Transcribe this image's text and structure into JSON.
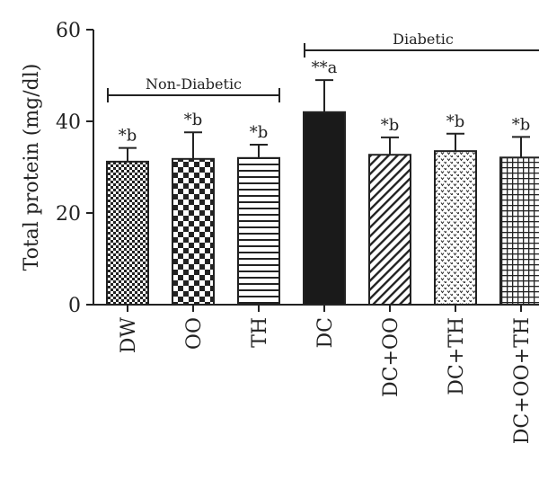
{
  "chart_data": {
    "type": "bar",
    "ylabel": "Total protein (mg/dl)",
    "ylim": [
      0,
      60
    ],
    "yticks": [
      0,
      20,
      40,
      60
    ],
    "categories": [
      "DW",
      "OO",
      "TH",
      "DC",
      "DC+OO",
      "DC+TH",
      "DC+OO+TH"
    ],
    "values": [
      31.2,
      31.8,
      32.0,
      42.0,
      32.7,
      33.5,
      32.1
    ],
    "errors": [
      3.0,
      5.8,
      2.9,
      7.0,
      3.8,
      3.8,
      4.5
    ],
    "annotations": [
      "*b",
      "*b",
      "*b",
      "**a",
      "*b",
      "*b",
      "*b"
    ],
    "patterns": [
      "fine-checker",
      "checkerboard",
      "horizontal-lines",
      "solid",
      "diagonal-lines",
      "dots",
      "grid"
    ],
    "groups": [
      {
        "label": "Non-Diabetic",
        "categories": [
          "DW",
          "OO",
          "TH"
        ]
      },
      {
        "label": "Diabetic",
        "categories": [
          "DC",
          "DC+OO",
          "DC+TH",
          "DC+OO+TH"
        ]
      }
    ],
    "colors": {
      "bar_stroke": "#222222",
      "solid_fill": "#1a1a1a",
      "pattern_ink": "#222222"
    },
    "grid": false
  }
}
